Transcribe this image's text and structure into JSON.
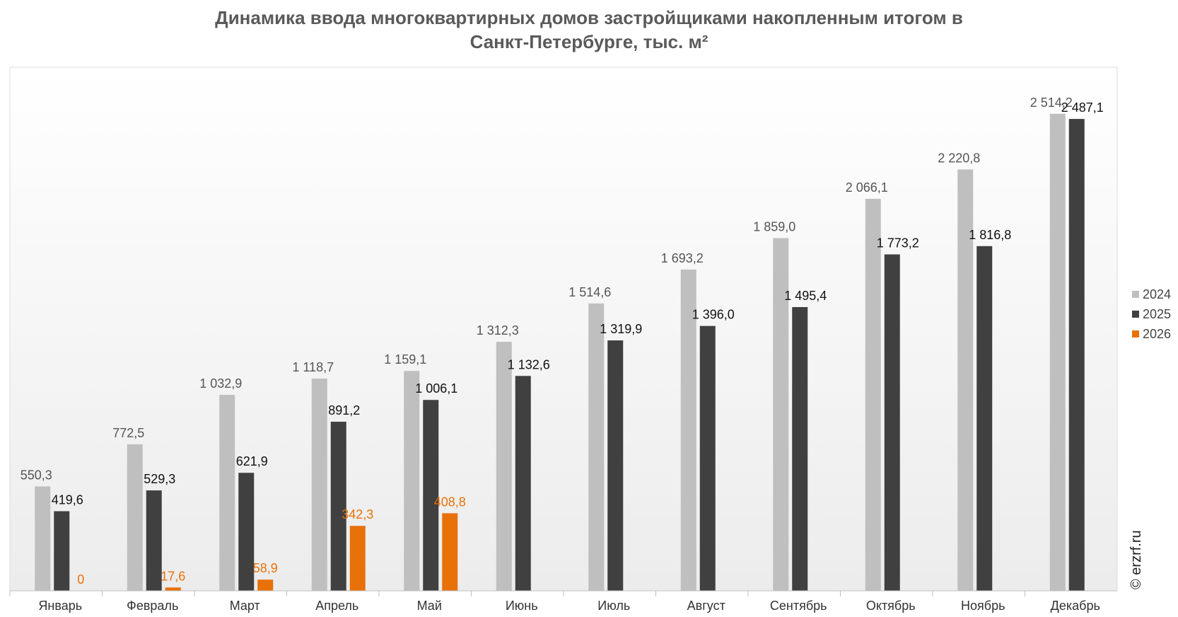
{
  "chart_data": {
    "type": "bar",
    "title_lines": [
      "Динамика ввода многоквартирных домов застройщиками накопленным итогом в",
      "Санкт-Петербурге, тыс. м²"
    ],
    "categories": [
      "Январь",
      "Февраль",
      "Март",
      "Апрель",
      "Май",
      "Июнь",
      "Июль",
      "Август",
      "Сентябрь",
      "Октябрь",
      "Ноябрь",
      "Декабрь"
    ],
    "series": [
      {
        "name": "2024",
        "color": "#bfbfbf",
        "label_color": "#555555",
        "values": [
          550.3,
          772.5,
          1032.9,
          1118.7,
          1159.1,
          1312.3,
          1514.6,
          1693.2,
          1859.0,
          2066.1,
          2220.8,
          2514.2
        ],
        "labels": [
          "550,3",
          "772,5",
          "1 032,9",
          "1 118,7",
          "1 159,1",
          "1 312,3",
          "1 514,6",
          "1 693,2",
          "1 859,0",
          "2 066,1",
          "2 220,8",
          "2 514,2"
        ]
      },
      {
        "name": "2025",
        "color": "#404040",
        "label_color": "#111111",
        "values": [
          419.6,
          529.3,
          621.9,
          891.2,
          1006.1,
          1132.6,
          1319.9,
          1396.0,
          1495.4,
          1773.2,
          1816.8,
          2487.1
        ],
        "labels": [
          "419,6",
          "529,3",
          "621,9",
          "891,2",
          "1 006,1",
          "1 132,6",
          "1 319,9",
          "1 396,0",
          "1 495,4",
          "1 773,2",
          "1 816,8",
          "2 487,1"
        ]
      },
      {
        "name": "2026",
        "color": "#e8710a",
        "label_color": "#e8710a",
        "values": [
          0,
          17.6,
          58.9,
          342.3,
          408.8,
          null,
          null,
          null,
          null,
          null,
          null,
          null
        ],
        "labels": [
          "0",
          "17,6",
          "58,9",
          "342,3",
          "408,8",
          "",
          "",
          "",
          "",
          "",
          "",
          ""
        ]
      }
    ],
    "ylim": [
      0,
      3000
    ],
    "grid": false,
    "legend_position": "right"
  },
  "watermark": "© erzrf.ru"
}
